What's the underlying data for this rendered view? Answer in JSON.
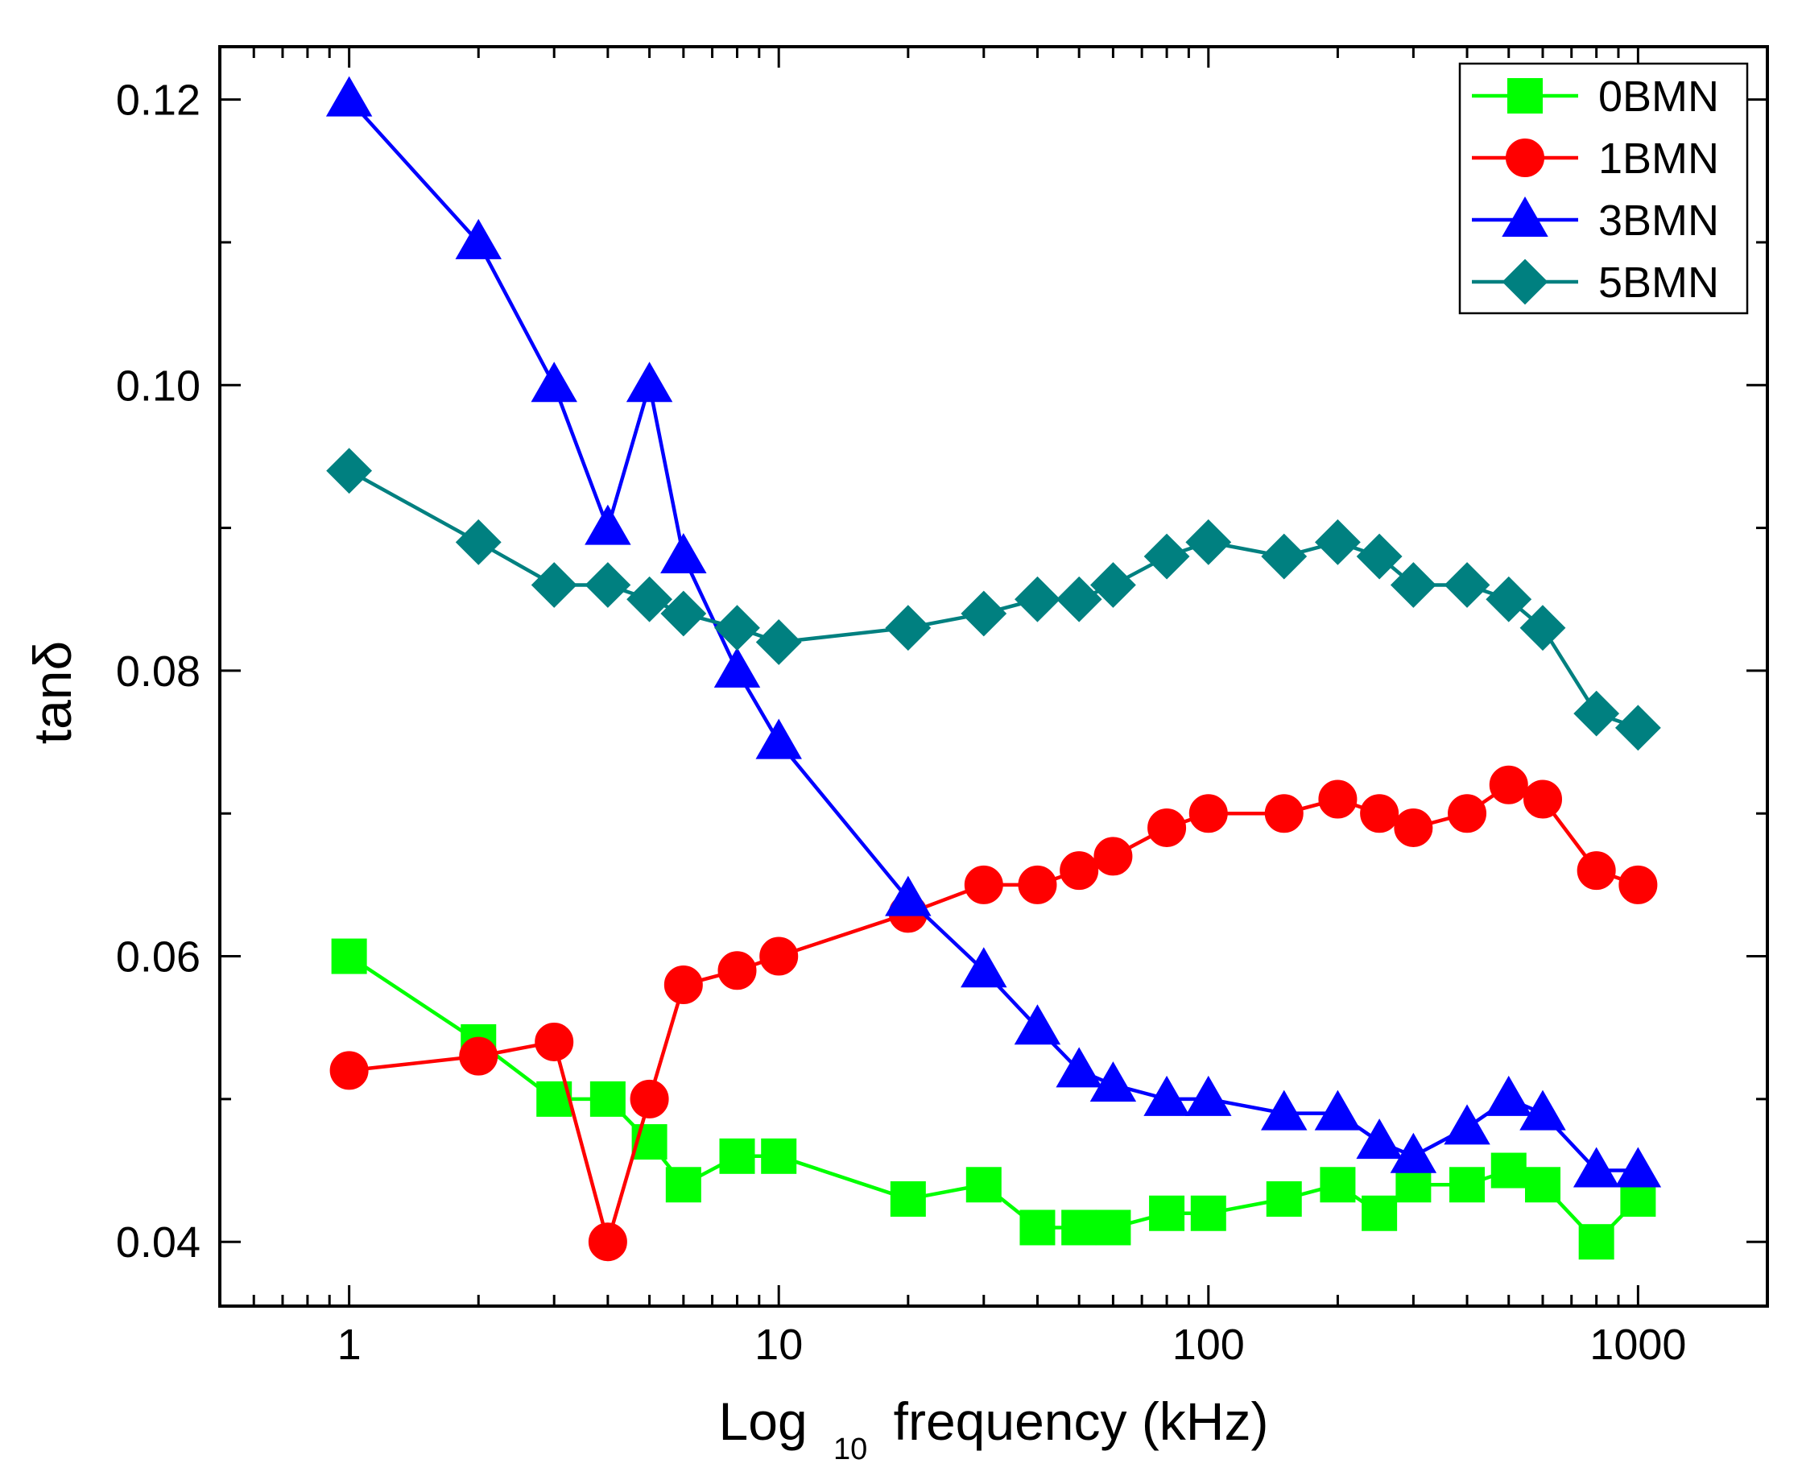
{
  "chart_data": {
    "type": "line",
    "xlabel": {
      "main": "Log",
      "sub": "10",
      "rest": "frequency (kHz)"
    },
    "ylabel": "tanδ",
    "xscale": "log",
    "xlim": [
      0.5,
      2000
    ],
    "ylim": [
      0.0355,
      0.1237
    ],
    "xticks": [
      1,
      10,
      100,
      1000
    ],
    "xtick_labels": [
      "1",
      "10",
      "100",
      "1000"
    ],
    "yticks": [
      0.04,
      0.06,
      0.08,
      0.1,
      0.12
    ],
    "ytick_labels": [
      "0.04",
      "0.06",
      "0.08",
      "0.10",
      "0.12"
    ],
    "grid": false,
    "legend_position": "top-right",
    "x": [
      1,
      2,
      3,
      4,
      5,
      6,
      8,
      10,
      20,
      30,
      40,
      50,
      60,
      80,
      100,
      150,
      200,
      250,
      300,
      400,
      500,
      600,
      800,
      1000
    ],
    "series": [
      {
        "name": "0BMN",
        "color": "#00ff00",
        "marker": "square",
        "values": [
          0.06,
          0.054,
          0.05,
          0.05,
          0.047,
          0.044,
          0.046,
          0.046,
          0.043,
          0.044,
          0.041,
          0.041,
          0.041,
          0.042,
          0.042,
          0.043,
          0.044,
          0.042,
          0.044,
          0.044,
          0.045,
          0.044,
          0.04,
          0.043
        ]
      },
      {
        "name": "1BMN",
        "color": "#ff0000",
        "marker": "circle",
        "values": [
          0.052,
          0.053,
          0.054,
          0.04,
          0.05,
          0.058,
          0.059,
          0.06,
          0.063,
          0.065,
          0.065,
          0.066,
          0.067,
          0.069,
          0.07,
          0.07,
          0.071,
          0.07,
          0.069,
          0.07,
          0.072,
          0.071,
          0.066,
          0.065
        ]
      },
      {
        "name": "3BMN",
        "color": "#0000ff",
        "marker": "triangle",
        "values": [
          0.12,
          0.11,
          0.1,
          0.09,
          0.1,
          0.088,
          0.08,
          0.075,
          0.064,
          0.059,
          0.055,
          0.052,
          0.051,
          0.05,
          0.05,
          0.049,
          0.049,
          0.047,
          0.046,
          0.048,
          0.05,
          0.049,
          0.045,
          0.045
        ]
      },
      {
        "name": "5BMN",
        "color": "#008080",
        "marker": "diamond",
        "values": [
          0.094,
          0.089,
          0.086,
          0.086,
          0.085,
          0.084,
          0.083,
          0.082,
          0.083,
          0.084,
          0.085,
          0.085,
          0.086,
          0.088,
          0.089,
          0.088,
          0.089,
          0.088,
          0.086,
          0.086,
          0.085,
          0.083,
          0.077,
          0.076
        ]
      }
    ]
  }
}
